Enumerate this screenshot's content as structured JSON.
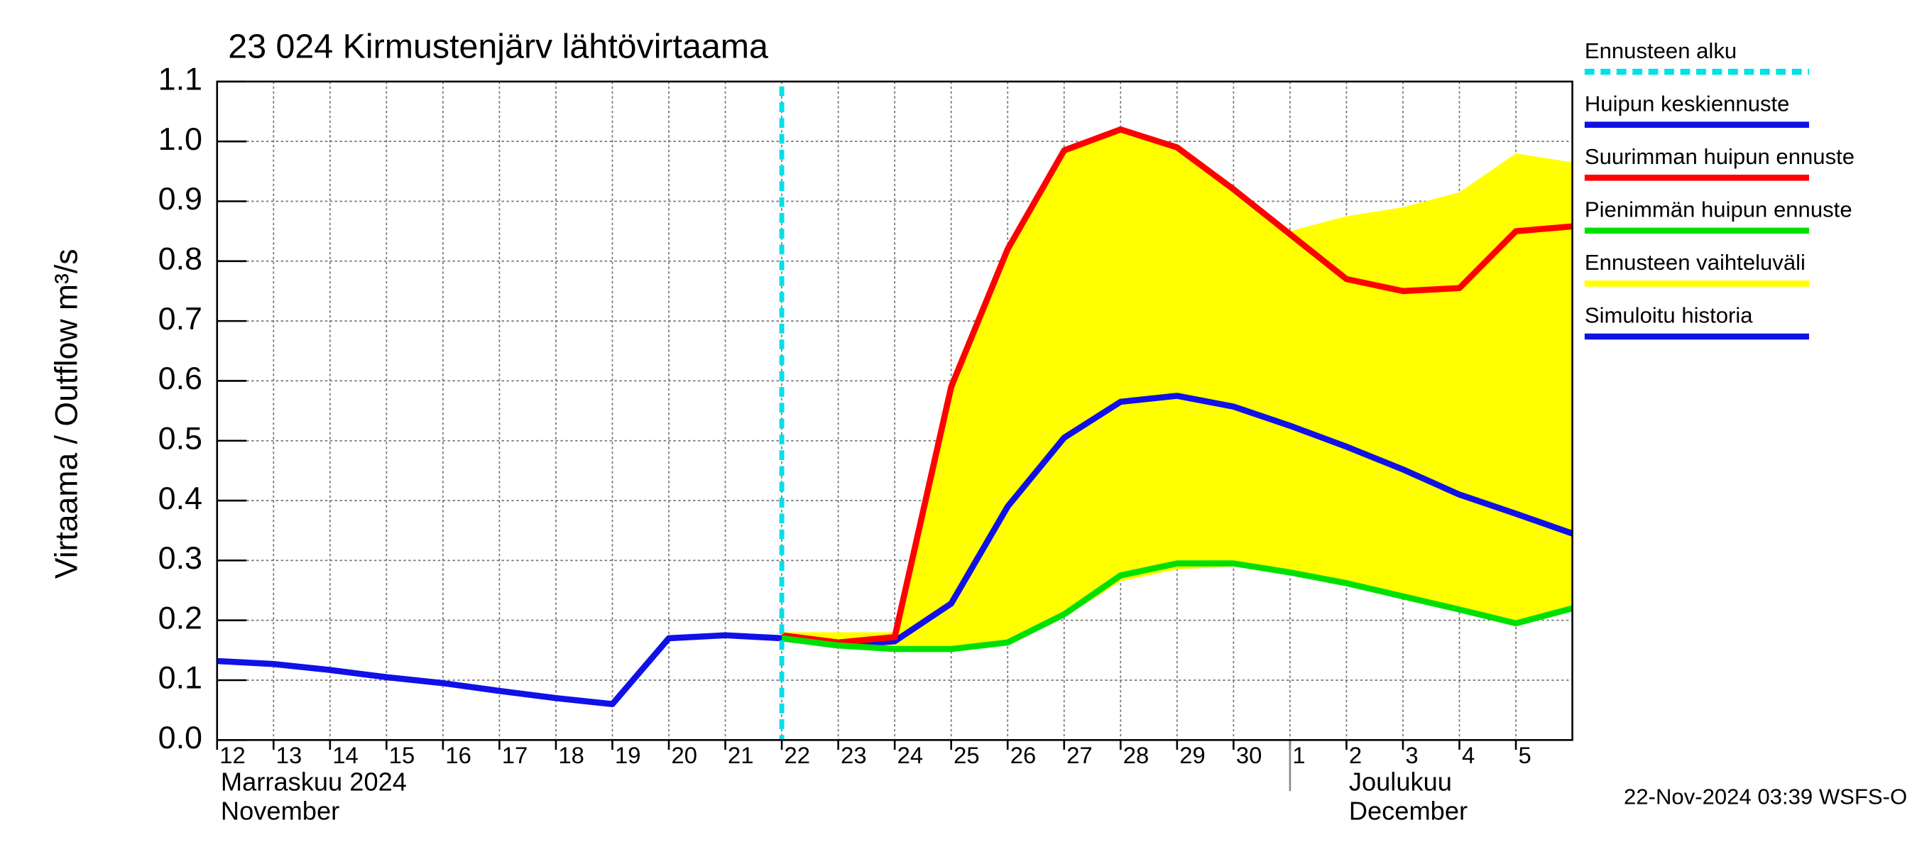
{
  "chart_data": {
    "type": "line",
    "title": "23 024 Kirmustenjärv lähtövirtaama",
    "ylabel": "Virtaama / Outflow    m³/s",
    "x": [
      "2024-11-12",
      "2024-11-13",
      "2024-11-14",
      "2024-11-15",
      "2024-11-16",
      "2024-11-17",
      "2024-11-18",
      "2024-11-19",
      "2024-11-20",
      "2024-11-21",
      "2024-11-22",
      "2024-11-23",
      "2024-11-24",
      "2024-11-25",
      "2024-11-26",
      "2024-11-27",
      "2024-11-28",
      "2024-11-29",
      "2024-11-30",
      "2024-12-01",
      "2024-12-02",
      "2024-12-03",
      "2024-12-04",
      "2024-12-05",
      "2024-12-06"
    ],
    "xlim": [
      "2024-11-12",
      "2024-12-06"
    ],
    "xticks": [
      {
        "value": "2024-11-12",
        "label": "12"
      },
      {
        "value": "2024-11-13",
        "label": "13"
      },
      {
        "value": "2024-11-14",
        "label": "14"
      },
      {
        "value": "2024-11-15",
        "label": "15"
      },
      {
        "value": "2024-11-16",
        "label": "16"
      },
      {
        "value": "2024-11-17",
        "label": "17"
      },
      {
        "value": "2024-11-18",
        "label": "18"
      },
      {
        "value": "2024-11-19",
        "label": "19"
      },
      {
        "value": "2024-11-20",
        "label": "20"
      },
      {
        "value": "2024-11-21",
        "label": "21"
      },
      {
        "value": "2024-11-22",
        "label": "22"
      },
      {
        "value": "2024-11-23",
        "label": "23"
      },
      {
        "value": "2024-11-24",
        "label": "24"
      },
      {
        "value": "2024-11-25",
        "label": "25"
      },
      {
        "value": "2024-11-26",
        "label": "26"
      },
      {
        "value": "2024-11-27",
        "label": "27"
      },
      {
        "value": "2024-11-28",
        "label": "28"
      },
      {
        "value": "2024-11-29",
        "label": "29"
      },
      {
        "value": "2024-11-30",
        "label": "30"
      },
      {
        "value": "2024-12-01",
        "label": "1"
      },
      {
        "value": "2024-12-02",
        "label": "2"
      },
      {
        "value": "2024-12-03",
        "label": "3"
      },
      {
        "value": "2024-12-04",
        "label": "4"
      },
      {
        "value": "2024-12-05",
        "label": "5"
      }
    ],
    "months": [
      {
        "x": "2024-11-12",
        "label": "Marraskuu 2024",
        "label_en": "November"
      },
      {
        "x": "2024-12-01",
        "label": "Joulukuu",
        "label_en": "December"
      }
    ],
    "ylim": [
      0,
      1.1
    ],
    "yticks": [
      {
        "value": 0,
        "label": "0.0"
      },
      0.1,
      0.2,
      0.3,
      0.4,
      0.5,
      0.6,
      0.7,
      0.8,
      0.9,
      {
        "value": 1,
        "label": "1.0"
      },
      1.1
    ],
    "grid": true,
    "forecast_start": {
      "name": "Ennusteen alku",
      "x": "2024-11-22",
      "color": "#00e0e8"
    },
    "series": [
      {
        "name": "Huipun keskiennuste",
        "color": "#1010e8",
        "values": [
          null,
          null,
          null,
          null,
          null,
          null,
          null,
          null,
          null,
          null,
          0.17,
          0.158,
          0.165,
          0.228,
          0.39,
          0.505,
          0.565,
          0.575,
          0.557,
          0.525,
          0.49,
          0.452,
          0.41,
          0.378,
          0.345
        ]
      },
      {
        "name": "Suurimman huipun ennuste",
        "color": "#ff0000",
        "values": [
          null,
          null,
          null,
          null,
          null,
          null,
          null,
          null,
          null,
          null,
          0.175,
          0.163,
          0.172,
          0.59,
          0.82,
          0.985,
          1.02,
          0.99,
          0.92,
          0.845,
          0.77,
          0.75,
          0.755,
          0.85,
          0.858
        ]
      },
      {
        "name": "Pienimmän huipun ennuste",
        "color": "#00e000",
        "values": [
          null,
          null,
          null,
          null,
          null,
          null,
          null,
          null,
          null,
          null,
          0.17,
          0.158,
          0.152,
          0.152,
          0.163,
          0.21,
          0.275,
          0.295,
          0.295,
          0.28,
          0.262,
          0.24,
          0.218,
          0.195,
          0.22
        ]
      },
      {
        "name": "Ennusteen vaihteluväli",
        "color": "#ffff00",
        "kind": "band",
        "values": [
          null,
          null,
          null,
          null,
          null,
          null,
          null,
          null,
          null,
          null,
          0.18,
          0.18,
          0.18,
          0.59,
          0.82,
          0.985,
          1.02,
          0.99,
          0.92,
          0.85,
          0.875,
          0.89,
          0.915,
          0.98,
          0.965
        ],
        "lower": [
          null,
          null,
          null,
          null,
          null,
          null,
          null,
          null,
          null,
          null,
          0.17,
          0.158,
          0.15,
          0.15,
          0.16,
          0.205,
          0.265,
          0.285,
          0.29,
          0.28,
          0.262,
          0.24,
          0.218,
          0.195,
          0.22
        ]
      },
      {
        "name": "Simuloitu historia",
        "color": "#1010e8",
        "values": [
          0.132,
          0.127,
          0.117,
          0.105,
          0.095,
          0.082,
          0.07,
          0.06,
          0.17,
          0.175,
          0.17,
          null,
          null,
          null,
          null,
          null,
          null,
          null,
          null,
          null,
          null,
          null,
          null,
          null,
          null
        ]
      }
    ],
    "timestamp": "22-Nov-2024 03:39 WSFS-O"
  }
}
